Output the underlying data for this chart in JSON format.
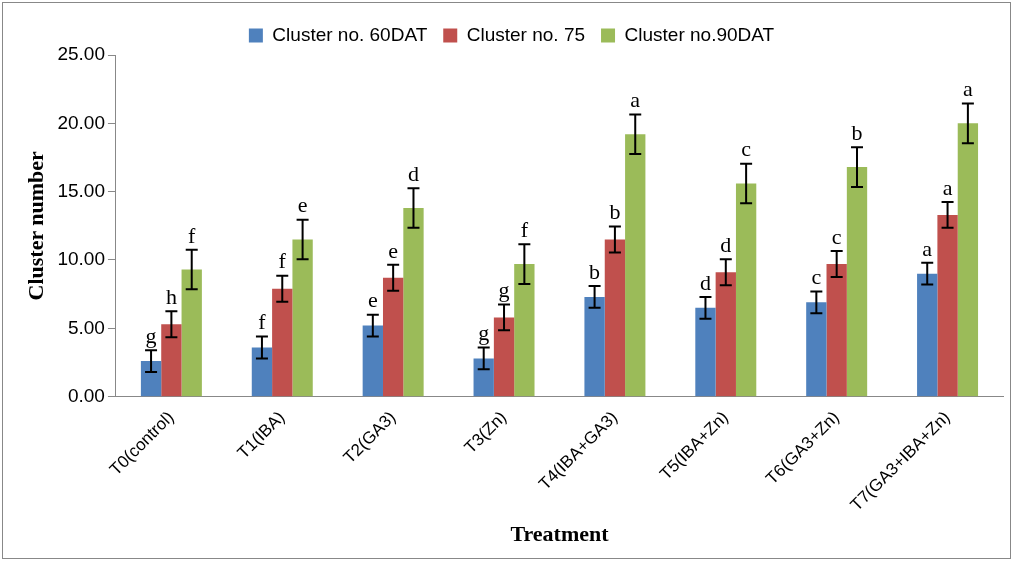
{
  "chart_data": {
    "type": "bar",
    "xlabel": "Treatment",
    "ylabel": "Cluster number",
    "categories": [
      "T0(control)",
      "T1(IBA)",
      "T2(GA3)",
      "T3(Zn)",
      "T4(IBA+GA3)",
      "T5(IBA+Zn)",
      "T6(GA3+Zn)",
      "T7(GA3+IBA+Zn)"
    ],
    "series": [
      {
        "name": "Cluster no. 60DAT",
        "color": "#4f81bd",
        "values": [
          2.6,
          3.6,
          5.2,
          2.8,
          7.3,
          6.5,
          6.9,
          9.0
        ],
        "errors": [
          0.8,
          0.8,
          0.8,
          0.8,
          0.8,
          0.8,
          0.8,
          0.8
        ],
        "value_labels": [
          "g",
          "f",
          "e",
          "g",
          "b",
          "d",
          "c",
          "a"
        ]
      },
      {
        "name": "Cluster no. 75",
        "color": "#c0504d",
        "values": [
          5.3,
          7.9,
          8.7,
          5.8,
          11.5,
          9.1,
          9.7,
          13.3
        ],
        "errors": [
          0.95,
          0.95,
          0.95,
          0.95,
          0.95,
          0.95,
          0.95,
          0.95
        ],
        "value_labels": [
          "h",
          "f",
          "e",
          "g",
          "b",
          "d",
          "c",
          "a"
        ]
      },
      {
        "name": "Cluster no.90DAT",
        "color": "#9bbb59",
        "values": [
          9.3,
          11.5,
          13.8,
          9.7,
          19.2,
          15.6,
          16.8,
          20.0
        ],
        "errors": [
          1.45,
          1.45,
          1.45,
          1.45,
          1.45,
          1.45,
          1.45,
          1.45
        ],
        "value_labels": [
          "f",
          "e",
          "d",
          "f",
          "a",
          "c",
          "b",
          "a"
        ]
      }
    ],
    "ylim": [
      0,
      25
    ],
    "yticks": [
      {
        "value": 0,
        "label": "0.00"
      },
      {
        "value": 5,
        "label": "5.00"
      },
      {
        "value": 10,
        "label": "10.00"
      },
      {
        "value": 15,
        "label": "15.00"
      },
      {
        "value": 20,
        "label": "20.00"
      },
      {
        "value": 25,
        "label": "25.00"
      }
    ],
    "grid": false,
    "legend": "top"
  }
}
